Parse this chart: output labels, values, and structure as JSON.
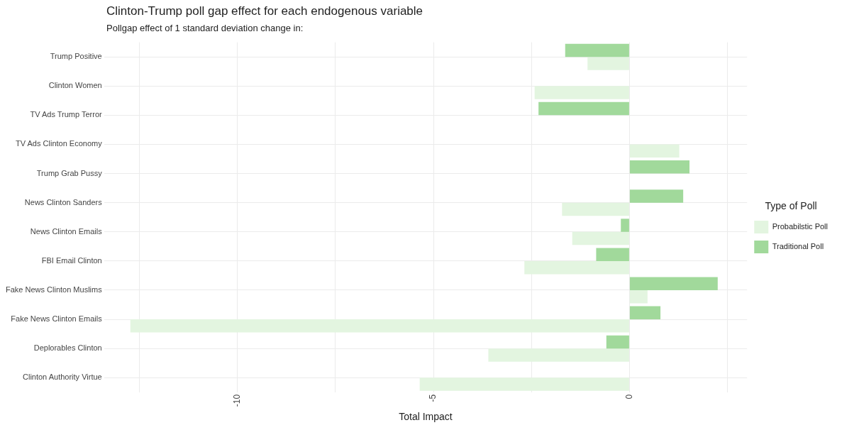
{
  "chart_data": {
    "type": "bar",
    "orientation": "horizontal",
    "title": "Clinton-Trump poll gap effect for each endogenous variable",
    "subtitle": "Pollgap effect of 1 standard deviation change in:",
    "xlabel": "Total Impact",
    "legend_title": "Type of Poll",
    "legend": "right",
    "grid": true,
    "categories": [
      "Trump Positive",
      "Clinton Women",
      "TV Ads Trump Terror",
      "TV Ads Clinton Economy",
      "Trump Grab Pussy",
      "News Clinton Sanders",
      "News Clinton Emails",
      "FBI Email Clinton",
      "Fake News Clinton Muslims",
      "Fake News Clinton Emails",
      "Deplorables Clinton",
      "Clinton Authority Virtue"
    ],
    "series": [
      {
        "name": "Probabilstic Poll",
        "color": "#e3f5e0",
        "values": [
          -1.07,
          -2.42,
          null,
          1.27,
          null,
          -1.72,
          -1.46,
          -2.68,
          0.46,
          -12.73,
          -3.6,
          -5.35
        ]
      },
      {
        "name": "Traditional Poll",
        "color": "#a1d99b",
        "values": [
          -1.64,
          null,
          -2.32,
          null,
          1.53,
          1.37,
          -0.22,
          -0.85,
          2.25,
          0.79,
          -0.59,
          null
        ]
      }
    ],
    "xlim": [
      -13.4,
      3.0
    ],
    "xticks": [
      {
        "value": -12.5,
        "label": null
      },
      -10,
      {
        "value": -7.5,
        "label": null
      },
      -5,
      {
        "value": -2.5,
        "label": null
      },
      0,
      {
        "value": 2.5,
        "label": null
      }
    ]
  }
}
